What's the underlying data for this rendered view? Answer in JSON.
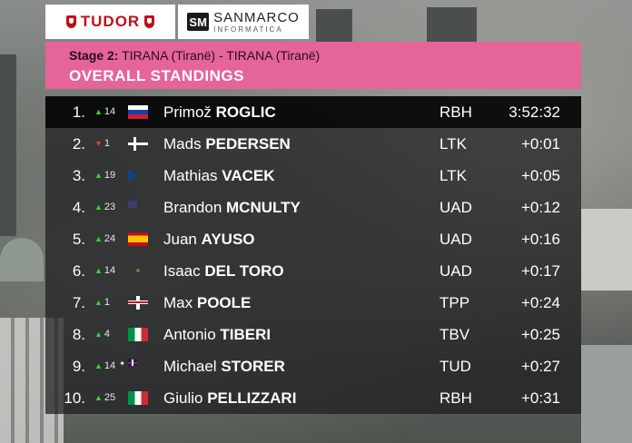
{
  "sponsors": {
    "tudor": "TUDOR",
    "sanmarco_top": "SANMARCO",
    "sanmarco_bottom": "INFORMATICA",
    "sanmarco_logo": "SM"
  },
  "header": {
    "stage_label": "Stage 2:",
    "stage_route": "TIRANA (Tiranë) - TIRANA (Tiranë)",
    "title": "OVERALL STANDINGS",
    "accent_color": "#e5659a"
  },
  "standings": [
    {
      "pos": "1.",
      "dir": "up",
      "chg": "14",
      "flag": "si",
      "first": "Primož",
      "last": "ROGLIC",
      "team": "RBH",
      "time": "3:52:32"
    },
    {
      "pos": "2.",
      "dir": "down",
      "chg": "1",
      "flag": "dk",
      "first": "Mads",
      "last": "PEDERSEN",
      "team": "LTK",
      "time": "+0:01"
    },
    {
      "pos": "3.",
      "dir": "up",
      "chg": "19",
      "flag": "cz",
      "first": "Mathias",
      "last": "VACEK",
      "team": "LTK",
      "time": "+0:05"
    },
    {
      "pos": "4.",
      "dir": "up",
      "chg": "23",
      "flag": "us",
      "first": "Brandon",
      "last": "MCNULTY",
      "team": "UAD",
      "time": "+0:12"
    },
    {
      "pos": "5.",
      "dir": "up",
      "chg": "24",
      "flag": "es",
      "first": "Juan",
      "last": "AYUSO",
      "team": "UAD",
      "time": "+0:16"
    },
    {
      "pos": "6.",
      "dir": "up",
      "chg": "14",
      "flag": "mx",
      "first": "Isaac",
      "last": "DEL TORO",
      "team": "UAD",
      "time": "+0:17"
    },
    {
      "pos": "7.",
      "dir": "up",
      "chg": "1",
      "flag": "gb",
      "first": "Max",
      "last": "POOLE",
      "team": "TPP",
      "time": "+0:24"
    },
    {
      "pos": "8.",
      "dir": "up",
      "chg": "4",
      "flag": "it",
      "first": "Antonio",
      "last": "TIBERI",
      "team": "TBV",
      "time": "+0:25"
    },
    {
      "pos": "9.",
      "dir": "up",
      "chg": "14",
      "flag": "au",
      "first": "Michael",
      "last": "STORER",
      "team": "TUD",
      "time": "+0:27"
    },
    {
      "pos": "10.",
      "dir": "up",
      "chg": "25",
      "flag": "it",
      "first": "Giulio",
      "last": "PELLIZZARI",
      "team": "RBH",
      "time": "+0:31"
    }
  ]
}
